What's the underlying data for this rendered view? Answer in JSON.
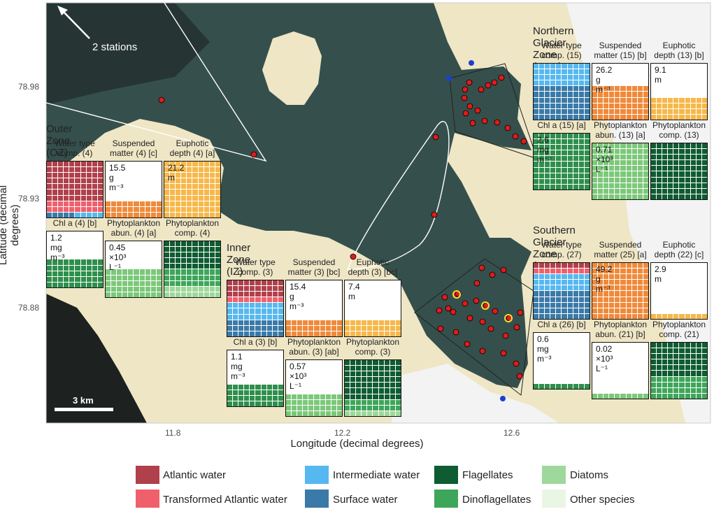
{
  "axes": {
    "xlabel": "Longitude (decimal degrees)",
    "ylabel": "Latitude (decimal degrees)",
    "x_ticks": [
      "11.8",
      "12.2",
      "12.6"
    ],
    "y_ticks": [
      "78.98",
      "78.93",
      "78.88"
    ]
  },
  "map": {
    "arrow_label": "2 stations",
    "scale_label": "3 km",
    "colors": {
      "land": "#efe6c6",
      "sea": "#2f3d3b",
      "glacier": "#f3f3f3",
      "station": "#e01b1b",
      "ctd_station": "#1b3fd1"
    }
  },
  "legend": [
    {
      "label": "Atlantic water",
      "color": "#b0404b"
    },
    {
      "label": "Transformed Atlantic water",
      "color": "#f0606c"
    },
    {
      "label": "Intermediate water",
      "color": "#56b8f0"
    },
    {
      "label": "Surface water",
      "color": "#3a7aa8"
    },
    {
      "label": "Flagellates",
      "color": "#0f5c32"
    },
    {
      "label": "Dinoflagellates",
      "color": "#3ea65a"
    },
    {
      "label": "Diatoms",
      "color": "#9ed89a"
    },
    {
      "label": "Other species",
      "color": "#eaf6e4"
    }
  ],
  "zones": {
    "OZ": {
      "title": "Outer Zone (OZ)",
      "water": {
        "h1": "Water type",
        "h2": "comp. (4)"
      },
      "susp": {
        "h1": "Suspended",
        "h2": "matter (4) [c]",
        "value": "15.5 g m⁻³"
      },
      "eup": {
        "h1": "Euphotic",
        "h2": "depth (4) [a]",
        "value": "21.2 m"
      },
      "chl": {
        "h1": "Chl a (4) [b]",
        "value": "1.2 mg m⁻³"
      },
      "phyto_abun": {
        "h1": "Phytoplankton",
        "h2": "abun. (4) [a]",
        "value": "0.45 ×10³ L⁻¹"
      },
      "phyto_comp": {
        "h1": "Phytoplankton",
        "h2": "comp. (4)"
      }
    },
    "IZ": {
      "title": "Inner Zone (IZ)",
      "water": {
        "h1": "Water type",
        "h2": "comp. (3)"
      },
      "susp": {
        "h1": "Suspended",
        "h2": "matter (3) [bc]",
        "value": "15.4 g m⁻³"
      },
      "eup": {
        "h1": "Euphotic",
        "h2": "depth (3) [bc]",
        "value": "7.4 m"
      },
      "chl": {
        "h1": "Chl a (3) [b]",
        "value": "1.1 mg m⁻³"
      },
      "phyto_abun": {
        "h1": "Phytoplankton",
        "h2": "abun. (3) [ab]",
        "value": "0.57 ×10³ L⁻¹"
      },
      "phyto_comp": {
        "h1": "Phytoplankton",
        "h2": "comp. (3)"
      }
    },
    "NGZ": {
      "title": "Northern Glacier Zone (NGZ)",
      "water": {
        "h1": "Water type",
        "h2": "comp. (15)"
      },
      "susp": {
        "h1": "Suspended",
        "h2": "matter (15) [b]",
        "value": "26.2 g m⁻³"
      },
      "eup": {
        "h1": "Euphotic",
        "h2": "depth (13) [b]",
        "value": "9.1 m"
      },
      "chl": {
        "h1": "Chl a (15) [a]",
        "value": "2.6 mg m⁻³"
      },
      "phyto_abun": {
        "h1": "Phytoplankton",
        "h2": "abun. (13) [a]",
        "value": "0.71 ×10³ L⁻¹"
      },
      "phyto_comp": {
        "h1": "Phytoplankton",
        "h2": "comp. (13)"
      }
    },
    "SGZ": {
      "title": "Southern Glacier Zone (SGZ)",
      "water": {
        "h1": "Water type",
        "h2": "comp. (27)"
      },
      "susp": {
        "h1": "Suspended",
        "h2": "matter (25) [a]",
        "value": "49.2 g m⁻³"
      },
      "eup": {
        "h1": "Euphotic",
        "h2": "depth (22) [c]",
        "value": "2.9 m"
      },
      "chl": {
        "h1": "Chl a (26) [b]",
        "value": "0.6 mg m⁻³"
      },
      "phyto_abun": {
        "h1": "Phytoplankton",
        "h2": "abun. (21) [b]",
        "value": "0.02 ×10³ L⁻¹"
      },
      "phyto_comp": {
        "h1": "Phytoplankton",
        "h2": "comp. (21)"
      }
    }
  },
  "waffle_data": {
    "OZ": {
      "water": [
        {
          "c": "#b0404b",
          "n": 70
        },
        {
          "c": "#f0606c",
          "n": 20
        },
        {
          "c": "#3a7aa8",
          "n": 5
        },
        {
          "c": "#56b8f0",
          "n": 5
        }
      ],
      "susp": 30,
      "eup": 100,
      "chl": 50,
      "abun": 50,
      "comp": [
        {
          "c": "#0f5c32",
          "n": 50
        },
        {
          "c": "#3ea65a",
          "n": 30
        },
        {
          "c": "#9ed89a",
          "n": 20
        }
      ]
    },
    "IZ": {
      "water": [
        {
          "c": "#b0404b",
          "n": 30
        },
        {
          "c": "#f0606c",
          "n": 10
        },
        {
          "c": "#56b8f0",
          "n": 30
        },
        {
          "c": "#3a7aa8",
          "n": 30
        }
      ],
      "susp": 30,
      "eup": 30,
      "chl": 40,
      "abun": 40,
      "comp": [
        {
          "c": "#0f5c32",
          "n": 70
        },
        {
          "c": "#3ea65a",
          "n": 20
        },
        {
          "c": "#9ed89a",
          "n": 10
        }
      ]
    },
    "NGZ": {
      "water": [
        {
          "c": "#56b8f0",
          "n": 40
        },
        {
          "c": "#3a7aa8",
          "n": 60
        }
      ],
      "susp": 60,
      "eup": 40,
      "chl": 100,
      "abun": 100,
      "comp": [
        {
          "c": "#0f5c32",
          "n": 100
        }
      ]
    },
    "SGZ": {
      "water": [
        {
          "c": "#b0404b",
          "n": 10
        },
        {
          "c": "#f0606c",
          "n": 10
        },
        {
          "c": "#56b8f0",
          "n": 30
        },
        {
          "c": "#3a7aa8",
          "n": 50
        }
      ],
      "susp": 100,
      "eup": 10,
      "chl": 10,
      "abun": 10,
      "comp": [
        {
          "c": "#0f5c32",
          "n": 60
        },
        {
          "c": "#3ea65a",
          "n": 40
        }
      ]
    }
  }
}
